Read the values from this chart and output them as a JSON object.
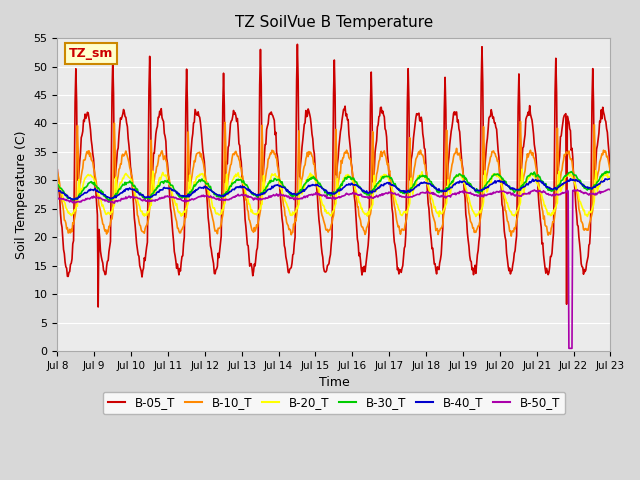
{
  "title": "TZ SoilVue B Temperature",
  "xlabel": "Time",
  "ylabel": "Soil Temperature (C)",
  "ylim": [
    0,
    55
  ],
  "yticks": [
    0,
    5,
    10,
    15,
    20,
    25,
    30,
    35,
    40,
    45,
    50,
    55
  ],
  "xlim_days": [
    0,
    15
  ],
  "xtick_labels": [
    "Jul 8",
    "Jul 9",
    "Jul 10",
    "Jul 11",
    "Jul 12",
    "Jul 13",
    "Jul 14",
    "Jul 15",
    "Jul 16",
    "Jul 17",
    "Jul 18",
    "Jul 19",
    "Jul 20",
    "Jul 21",
    "Jul 22",
    "Jul 23"
  ],
  "series_colors": {
    "B-05_T": "#cc0000",
    "B-10_T": "#ff8800",
    "B-20_T": "#ffff00",
    "B-30_T": "#00cc00",
    "B-40_T": "#0000cc",
    "B-50_T": "#aa00aa"
  },
  "legend_label": "TZ_sm",
  "legend_bg": "#ffffcc",
  "legend_border": "#cc8800",
  "bg_color": "#e8e8e8",
  "plot_bg": "#f0f0f0",
  "line_width": 1.2
}
